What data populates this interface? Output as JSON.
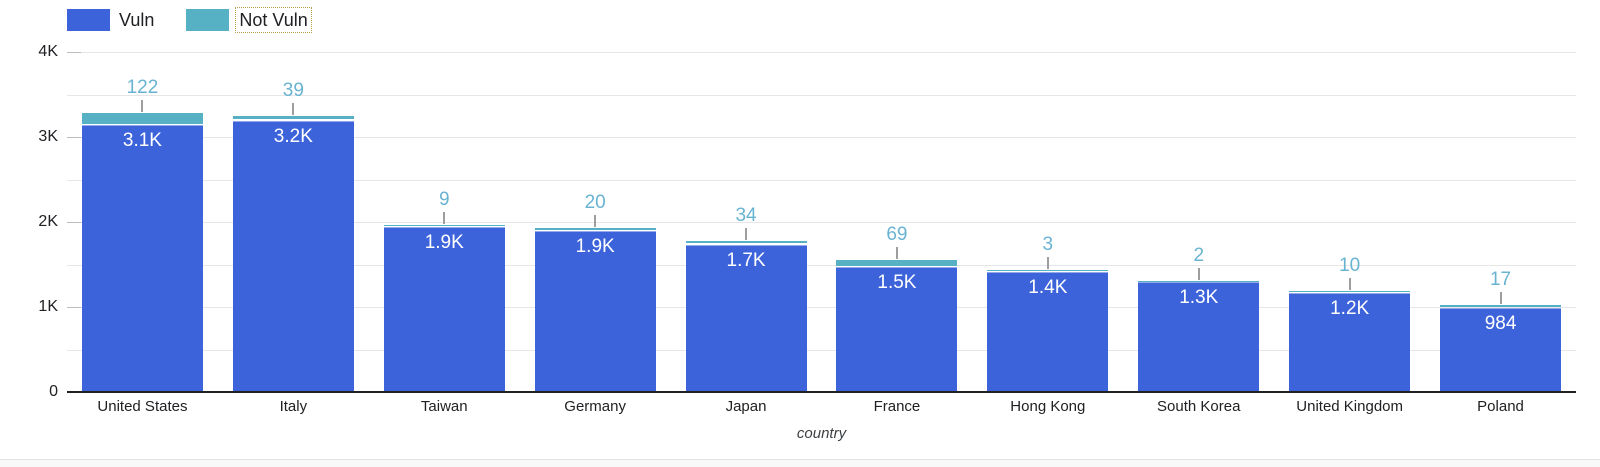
{
  "legend": {
    "items": [
      {
        "label": "Vuln",
        "color": "#3D63DB",
        "focused": false
      },
      {
        "label": "Not Vuln",
        "color": "#57B1C5",
        "focused": true
      }
    ]
  },
  "chart_data": {
    "type": "bar",
    "stacked": true,
    "title": "",
    "xlabel": "country",
    "ylabel": "",
    "ylim": [
      0,
      4000
    ],
    "y_major_step": 1000,
    "y_minor_step": 500,
    "y_tick_labels": [
      "0",
      "1K",
      "2K",
      "3K",
      "4K"
    ],
    "grid": true,
    "legend_position": "top-left",
    "categories": [
      "United States",
      "Italy",
      "Taiwan",
      "Germany",
      "Japan",
      "France",
      "Hong Kong",
      "South Korea",
      "United Kingdom",
      "Poland"
    ],
    "series": [
      {
        "name": "Vuln",
        "color": "#3D63DB",
        "values": [
          3140,
          3190,
          1940,
          1890,
          1730,
          1470,
          1410,
          1290,
          1160,
          984
        ],
        "labels": [
          "3.1K",
          "3.2K",
          "1.9K",
          "1.9K",
          "1.7K",
          "1.5K",
          "1.4K",
          "1.3K",
          "1.2K",
          "984"
        ]
      },
      {
        "name": "Not Vuln",
        "color": "#57B1C5",
        "values": [
          122,
          39,
          9,
          20,
          34,
          69,
          3,
          2,
          10,
          17
        ],
        "labels": [
          "122",
          "39",
          "9",
          "20",
          "34",
          "69",
          "3",
          "2",
          "10",
          "17"
        ]
      }
    ]
  },
  "colors": {
    "vuln": "#3D63DB",
    "not_vuln": "#57B1C5",
    "not_vuln_value_label": "#69B3D2",
    "vuln_value_label": "#ffffff",
    "gridline": "#e6e6e6",
    "axis_line": "#212121",
    "connector_line": "#9e9e9e",
    "focus_outline": "#b5a14e"
  }
}
